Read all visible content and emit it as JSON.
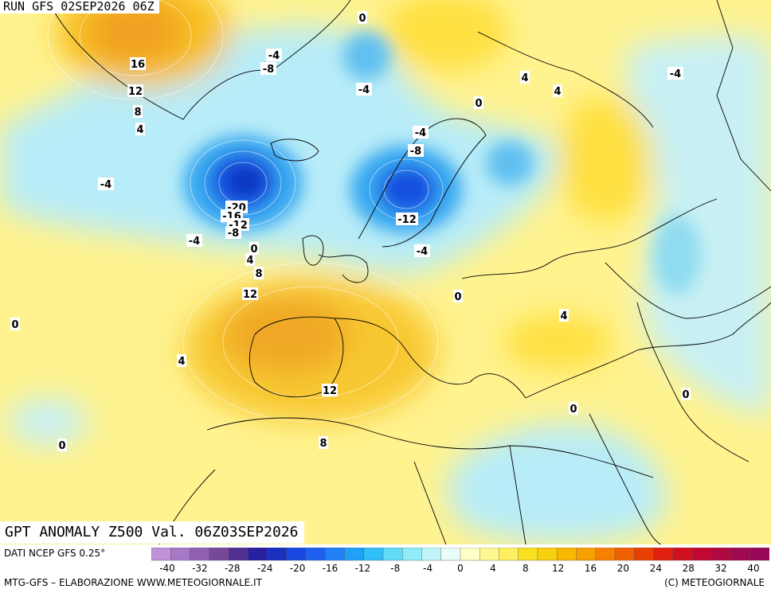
{
  "header": {
    "run": "RUN GFS 02SEP2026 06Z"
  },
  "map_title": "GPT ANOMALY Z500 Val. 06Z03SEP2026",
  "footer": {
    "source": "DATI NCEP GFS 0.25°",
    "credit": "MTG-GFS – ELABORAZIONE WWW.METEOGIORNALE.IT",
    "copyright": "(C) METEOGIORNALE"
  },
  "colors": {
    "neg_strong": "#1840d8",
    "neg_mid": "#38a8f0",
    "neg_light": "#b8ecf8",
    "zero": "#ffffc0",
    "pos_light": "#ffec50",
    "pos_mid": "#f8c020",
    "pos_strong": "#f0a020"
  },
  "colorbar": {
    "ticks": [
      "-40",
      "-32",
      "-28",
      "-24",
      "-20",
      "-16",
      "-12",
      "-8",
      "-4",
      "0",
      "4",
      "8",
      "12",
      "16",
      "20",
      "24",
      "28",
      "32",
      "40"
    ],
    "colors": [
      "#c090d8",
      "#a878c8",
      "#9060b0",
      "#784898",
      "#503090",
      "#2820a0",
      "#1830c0",
      "#1848e0",
      "#2060f0",
      "#2080f8",
      "#20a0f8",
      "#30c0f8",
      "#60dcf8",
      "#90ecf8",
      "#c0f4f8",
      "#e8fcf8",
      "#ffffc8",
      "#fff890",
      "#fff060",
      "#f8e020",
      "#f8d010",
      "#f8b800",
      "#f8a000",
      "#f88000",
      "#f06000",
      "#e84000",
      "#e02010",
      "#d01020",
      "#c00830",
      "#b00840",
      "#a00850",
      "#980858"
    ]
  },
  "contour_labels": [
    {
      "t": "16"
    },
    {
      "t": "12"
    },
    {
      "t": "8"
    },
    {
      "t": "4"
    },
    {
      "t": "-4"
    },
    {
      "t": "-8"
    },
    {
      "t": "-4"
    },
    {
      "t": "0"
    },
    {
      "t": "0"
    },
    {
      "t": "4"
    },
    {
      "t": "4"
    },
    {
      "t": "-4"
    },
    {
      "t": "-4"
    },
    {
      "t": "-8"
    },
    {
      "t": "-4"
    },
    {
      "t": "-20"
    },
    {
      "t": "-16"
    },
    {
      "t": "-12"
    },
    {
      "t": "-8"
    },
    {
      "t": "-12"
    },
    {
      "t": "-4"
    },
    {
      "t": "-4"
    },
    {
      "t": "0"
    },
    {
      "t": "4"
    },
    {
      "t": "8"
    },
    {
      "t": "12"
    },
    {
      "t": "0"
    },
    {
      "t": "0"
    },
    {
      "t": "4"
    },
    {
      "t": "4"
    },
    {
      "t": "12"
    },
    {
      "t": "0"
    },
    {
      "t": "8"
    },
    {
      "t": "0"
    },
    {
      "t": "0"
    }
  ]
}
